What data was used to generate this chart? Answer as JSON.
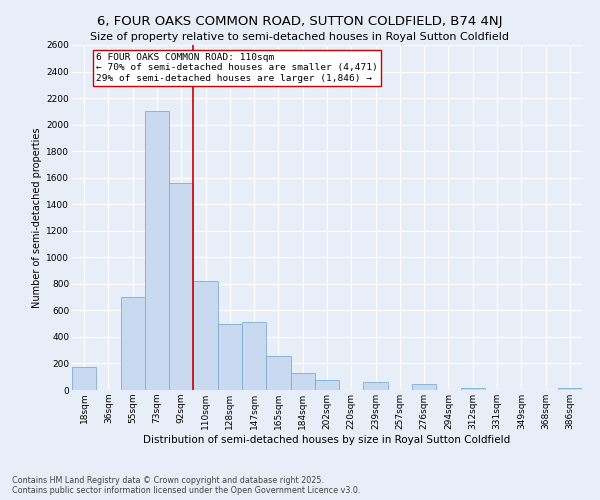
{
  "title": "6, FOUR OAKS COMMON ROAD, SUTTON COLDFIELD, B74 4NJ",
  "subtitle": "Size of property relative to semi-detached houses in Royal Sutton Coldfield",
  "xlabel": "Distribution of semi-detached houses by size in Royal Sutton Coldfield",
  "ylabel": "Number of semi-detached properties",
  "categories": [
    "18sqm",
    "36sqm",
    "55sqm",
    "73sqm",
    "92sqm",
    "110sqm",
    "128sqm",
    "147sqm",
    "165sqm",
    "184sqm",
    "202sqm",
    "220sqm",
    "239sqm",
    "257sqm",
    "276sqm",
    "294sqm",
    "312sqm",
    "331sqm",
    "349sqm",
    "368sqm",
    "386sqm"
  ],
  "values": [
    175,
    0,
    700,
    2100,
    1560,
    820,
    500,
    510,
    255,
    130,
    75,
    0,
    60,
    0,
    45,
    0,
    15,
    0,
    0,
    0,
    15
  ],
  "bar_color": "#c8d9f0",
  "bar_edge_color": "#7bafd4",
  "vline_color": "#cc0000",
  "vline_index": 5,
  "annotation_text": "6 FOUR OAKS COMMON ROAD: 110sqm\n← 70% of semi-detached houses are smaller (4,471)\n29% of semi-detached houses are larger (1,846) →",
  "annotation_box_facecolor": "white",
  "annotation_box_edgecolor": "#cc0000",
  "ylim": [
    0,
    2600
  ],
  "yticks": [
    0,
    200,
    400,
    600,
    800,
    1000,
    1200,
    1400,
    1600,
    1800,
    2000,
    2200,
    2400,
    2600
  ],
  "background_color": "#e8eef8",
  "grid_color": "white",
  "title_fontsize": 9.5,
  "subtitle_fontsize": 8,
  "xlabel_fontsize": 7.5,
  "ylabel_fontsize": 7,
  "tick_fontsize": 6.5,
  "annotation_fontsize": 6.8,
  "footnote_fontsize": 5.8,
  "footnote": "Contains HM Land Registry data © Crown copyright and database right 2025.\nContains public sector information licensed under the Open Government Licence v3.0."
}
